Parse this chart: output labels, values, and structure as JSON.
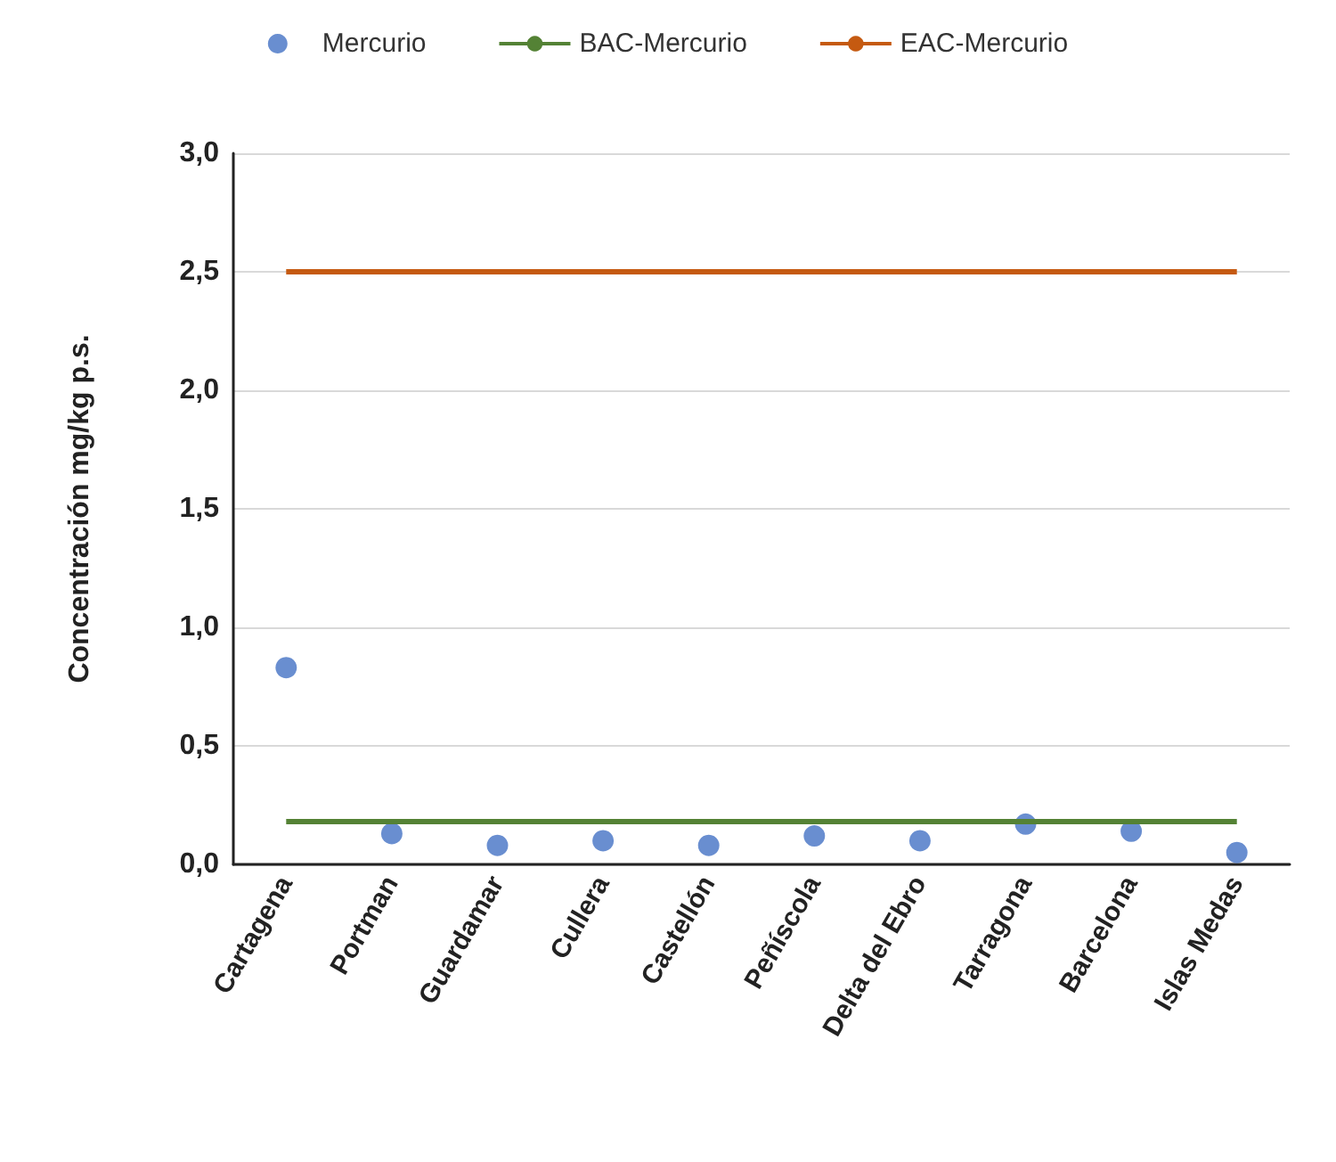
{
  "chart_data": {
    "type": "scatter",
    "ylabel": "Concentración mg/kg p.s.",
    "categories": [
      "Cartagena",
      "Portman",
      "Guardamar",
      "Cullera",
      "Castellón",
      "Peñíscola",
      "Delta del Ebro",
      "Tarragona",
      "Barcelona",
      "Islas Medas"
    ],
    "series": [
      {
        "name": "Mercurio",
        "color": "#4472c4",
        "marker": "circle",
        "values": [
          0.83,
          0.13,
          0.08,
          0.1,
          0.08,
          0.12,
          0.1,
          0.17,
          0.14,
          0.05
        ]
      },
      {
        "name": "BAC-Mercurio",
        "type": "line",
        "color": "#548235",
        "marker": "none",
        "values": [
          0.18,
          0.18,
          0.18,
          0.18,
          0.18,
          0.18,
          0.18,
          0.18,
          0.18,
          0.18
        ]
      },
      {
        "name": "EAC-Mercurio",
        "type": "line",
        "color": "#c55a11",
        "marker": "none",
        "values": [
          2.5,
          2.5,
          2.5,
          2.5,
          2.5,
          2.5,
          2.5,
          2.5,
          2.5,
          2.5
        ]
      }
    ],
    "ylim": [
      0,
      3
    ],
    "yticks": [
      {
        "value": 0,
        "label": "0,0"
      },
      {
        "value": 0.5,
        "label": "0,5"
      },
      {
        "value": 1,
        "label": "1,0"
      },
      {
        "value": 1.5,
        "label": "1,5"
      },
      {
        "value": 2,
        "label": "2,0"
      },
      {
        "value": 2.5,
        "label": "2,5"
      },
      {
        "value": 3,
        "label": "3,0"
      }
    ],
    "grid": "y",
    "legend": "top"
  }
}
